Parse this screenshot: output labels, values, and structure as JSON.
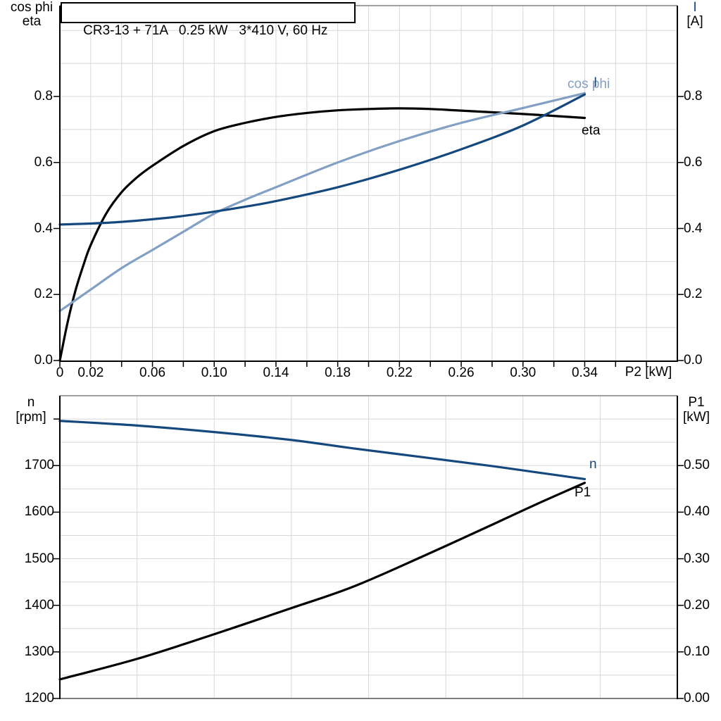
{
  "labels": {
    "title": "CR3-13 + 71A   0.25 kW   3*410 V, 60 Hz",
    "top_left_line1": "cos phi",
    "top_left_line2": "eta",
    "top_right_line1": "I",
    "top_right_line2": "[A]",
    "x_axis": "P2 [kW]",
    "curve_cos_phi": "cos phi",
    "curve_current": "I",
    "curve_eta": "eta",
    "bottom_left_line1": "n",
    "bottom_left_line2": "[rpm]",
    "bottom_right_line1": "P1",
    "bottom_right_line2": "[kW]",
    "curve_n": "n",
    "curve_p1": "P1"
  },
  "colors": {
    "dark_blue": "#15497E",
    "light_blue": "#82A0C3",
    "black": "#000000",
    "grid": "#D8D8D8",
    "frame": "#808080"
  },
  "chart_data": [
    {
      "type": "line",
      "title": "CR3-13 + 71A   0.25 kW   3*410 V, 60 Hz",
      "xlabel": "P2 [kW]",
      "ylabel_left": "cos phi / eta",
      "ylabel_right": "I [A]",
      "xlim": [
        0,
        0.4
      ],
      "ylim": [
        0,
        1.075
      ],
      "grid": true,
      "x_tick_values": [
        0,
        0.02,
        0.06,
        0.1,
        0.14,
        0.18,
        0.22,
        0.26,
        0.3,
        0.34
      ],
      "x_tick_labels": [
        "0",
        "0.02",
        "0.06",
        "0.10",
        "0.14",
        "0.18",
        "0.22",
        "0.26",
        "0.30",
        "0.34"
      ],
      "y_tick_values": [
        0.0,
        0.2,
        0.4,
        0.6,
        0.8
      ],
      "y_tick_labels": [
        "0.0",
        "0.2",
        "0.4",
        "0.6",
        "0.8"
      ],
      "series": [
        {
          "name": "eta",
          "color": "#000000",
          "x": [
            0,
            0.005,
            0.01,
            0.015,
            0.02,
            0.03,
            0.04,
            0.05,
            0.06,
            0.08,
            0.1,
            0.12,
            0.14,
            0.16,
            0.18,
            0.2,
            0.22,
            0.24,
            0.26,
            0.3,
            0.34
          ],
          "y": [
            0,
            0.115,
            0.21,
            0.285,
            0.35,
            0.445,
            0.51,
            0.555,
            0.59,
            0.65,
            0.695,
            0.72,
            0.738,
            0.75,
            0.758,
            0.762,
            0.764,
            0.762,
            0.757,
            0.747,
            0.735
          ]
        },
        {
          "name": "cos phi",
          "color": "#82A0C3",
          "x": [
            0,
            0.02,
            0.04,
            0.06,
            0.08,
            0.1,
            0.12,
            0.14,
            0.18,
            0.22,
            0.26,
            0.3,
            0.34
          ],
          "y": [
            0.15,
            0.215,
            0.28,
            0.335,
            0.39,
            0.445,
            0.487,
            0.525,
            0.6,
            0.665,
            0.72,
            0.765,
            0.81
          ]
        },
        {
          "name": "I",
          "color": "#15497E",
          "x": [
            0,
            0.02,
            0.04,
            0.06,
            0.08,
            0.1,
            0.12,
            0.14,
            0.18,
            0.22,
            0.26,
            0.3,
            0.34
          ],
          "y": [
            0.412,
            0.415,
            0.42,
            0.428,
            0.438,
            0.451,
            0.466,
            0.483,
            0.525,
            0.578,
            0.64,
            0.712,
            0.806
          ]
        }
      ]
    },
    {
      "type": "line",
      "xlabel": "P2 [kW]",
      "ylabel_left": "n [rpm]",
      "ylabel_right": "P1 [kW]",
      "xlim": [
        0,
        0.4
      ],
      "ylim_left": [
        1200,
        1850
      ],
      "ylim_right": [
        0,
        0.65
      ],
      "grid": true,
      "y_tick_values_left": [
        1200,
        1300,
        1400,
        1500,
        1600,
        1700
      ],
      "y_tick_labels_left": [
        "1200",
        "1300",
        "1400",
        "1500",
        "1600",
        "1700"
      ],
      "y_tick_values_right": [
        0.0,
        0.1,
        0.2,
        0.3,
        0.4,
        0.5
      ],
      "y_tick_labels_right": [
        "0.00",
        "0.10",
        "0.20",
        "0.30",
        "0.40",
        "0.50"
      ],
      "series": [
        {
          "name": "n",
          "axis": "left",
          "color": "#15497E",
          "x": [
            0,
            0.05,
            0.1,
            0.15,
            0.19,
            0.24,
            0.28,
            0.31,
            0.34
          ],
          "y": [
            1796,
            1786,
            1772,
            1755,
            1737,
            1716,
            1699,
            1685,
            1671
          ]
        },
        {
          "name": "P1",
          "axis": "right",
          "color": "#000000",
          "x": [
            0,
            0.05,
            0.1,
            0.15,
            0.19,
            0.235,
            0.28,
            0.31,
            0.34
          ],
          "y": [
            0.041,
            0.085,
            0.138,
            0.194,
            0.24,
            0.305,
            0.373,
            0.419,
            0.463
          ]
        }
      ]
    }
  ]
}
